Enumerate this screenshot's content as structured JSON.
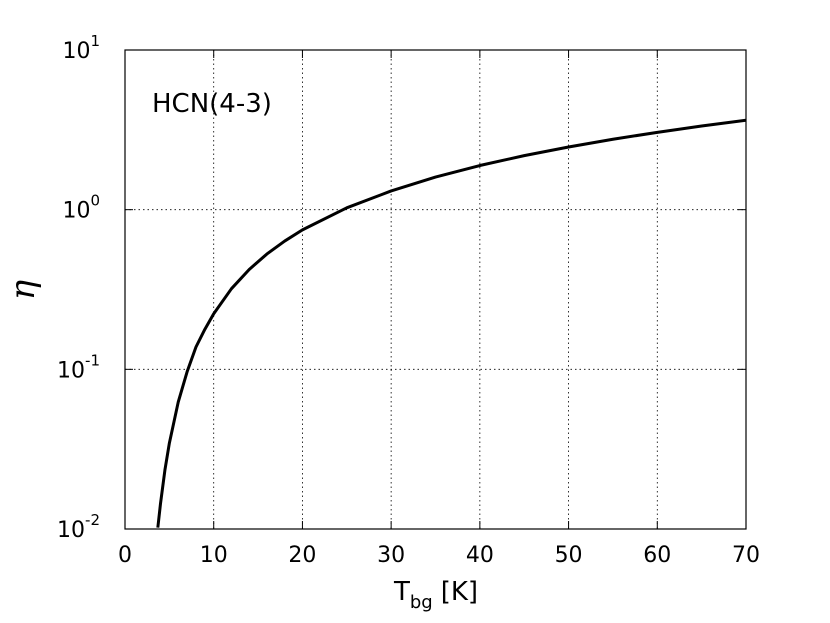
{
  "chart_data": {
    "type": "line",
    "annotation": "HCN(4-3)",
    "x_label": {
      "main": "T",
      "subscript": "bg",
      "unit": "[K]"
    },
    "y_label": "η",
    "x": [
      3.7,
      4,
      4.5,
      5,
      6,
      7,
      8,
      9,
      10,
      12,
      14,
      16,
      18,
      20,
      25,
      30,
      35,
      40,
      45,
      50,
      55,
      60,
      65,
      70
    ],
    "values": [
      0.0102,
      0.0144,
      0.0234,
      0.0345,
      0.0624,
      0.0965,
      0.138,
      0.178,
      0.223,
      0.32,
      0.422,
      0.528,
      0.636,
      0.747,
      1.027,
      1.31,
      1.6,
      1.89,
      2.18,
      2.47,
      2.76,
      3.05,
      3.34,
      3.63
    ],
    "color": "#000000",
    "xlim": [
      0,
      70
    ],
    "xticks": [
      0,
      10,
      20,
      30,
      40,
      50,
      60,
      70
    ],
    "ylim": [
      0.01,
      10
    ],
    "yscale": "log",
    "yticks": [
      {
        "value": 0.01,
        "label": "10",
        "exponent": "-2"
      },
      {
        "value": 0.1,
        "label": "10",
        "exponent": "-1"
      },
      {
        "value": 1,
        "label": "10",
        "exponent": "0"
      },
      {
        "value": 10,
        "label": "10",
        "exponent": "1"
      }
    ],
    "grid": true
  }
}
